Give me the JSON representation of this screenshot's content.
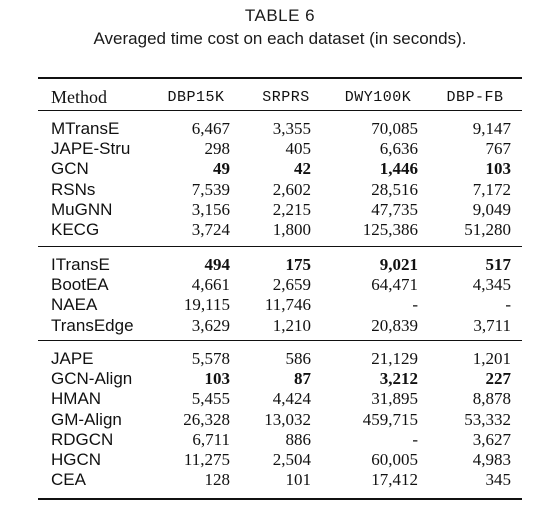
{
  "caption": {
    "label": "TABLE 6",
    "text": "Averaged time cost on each dataset (in seconds)."
  },
  "table": {
    "headers": [
      "Method",
      "DBP15K",
      "SRPRS",
      "DWY100K",
      "DBP-FB"
    ],
    "groups": [
      {
        "rows": [
          {
            "method": "MTransE",
            "values": [
              "6,467",
              "3,355",
              "70,085",
              "9,147"
            ],
            "bold": [
              false,
              false,
              false,
              false
            ]
          },
          {
            "method": "JAPE-Stru",
            "values": [
              "298",
              "405",
              "6,636",
              "767"
            ],
            "bold": [
              false,
              false,
              false,
              false
            ]
          },
          {
            "method": "GCN",
            "values": [
              "49",
              "42",
              "1,446",
              "103"
            ],
            "bold": [
              true,
              true,
              true,
              true
            ]
          },
          {
            "method": "RSNs",
            "values": [
              "7,539",
              "2,602",
              "28,516",
              "7,172"
            ],
            "bold": [
              false,
              false,
              false,
              false
            ]
          },
          {
            "method": "MuGNN",
            "values": [
              "3,156",
              "2,215",
              "47,735",
              "9,049"
            ],
            "bold": [
              false,
              false,
              false,
              false
            ]
          },
          {
            "method": "KECG",
            "values": [
              "3,724",
              "1,800",
              "125,386",
              "51,280"
            ],
            "bold": [
              false,
              false,
              false,
              false
            ]
          }
        ]
      },
      {
        "rows": [
          {
            "method": "ITransE",
            "values": [
              "494",
              "175",
              "9,021",
              "517"
            ],
            "bold": [
              true,
              true,
              true,
              true
            ]
          },
          {
            "method": "BootEA",
            "values": [
              "4,661",
              "2,659",
              "64,471",
              "4,345"
            ],
            "bold": [
              false,
              false,
              false,
              false
            ]
          },
          {
            "method": "NAEA",
            "values": [
              "19,115",
              "11,746",
              "-",
              "-"
            ],
            "bold": [
              false,
              false,
              false,
              false
            ]
          },
          {
            "method": "TransEdge",
            "values": [
              "3,629",
              "1,210",
              "20,839",
              "3,711"
            ],
            "bold": [
              false,
              false,
              false,
              false
            ]
          }
        ]
      },
      {
        "rows": [
          {
            "method": "JAPE",
            "values": [
              "5,578",
              "586",
              "21,129",
              "1,201"
            ],
            "bold": [
              false,
              false,
              false,
              false
            ]
          },
          {
            "method": "GCN-Align",
            "values": [
              "103",
              "87",
              "3,212",
              "227"
            ],
            "bold": [
              true,
              true,
              true,
              true
            ]
          },
          {
            "method": "HMAN",
            "values": [
              "5,455",
              "4,424",
              "31,895",
              "8,878"
            ],
            "bold": [
              false,
              false,
              false,
              false
            ]
          },
          {
            "method": "GM-Align",
            "values": [
              "26,328",
              "13,032",
              "459,715",
              "53,332"
            ],
            "bold": [
              false,
              false,
              false,
              false
            ]
          },
          {
            "method": "RDGCN",
            "values": [
              "6,711",
              "886",
              "-",
              "3,627"
            ],
            "bold": [
              false,
              false,
              false,
              false
            ]
          },
          {
            "method": "HGCN",
            "values": [
              "11,275",
              "2,504",
              "60,005",
              "4,983"
            ],
            "bold": [
              false,
              false,
              false,
              false
            ]
          },
          {
            "method": "CEA",
            "values": [
              "128",
              "101",
              "17,412",
              "345"
            ],
            "bold": [
              false,
              false,
              false,
              false
            ]
          }
        ]
      }
    ]
  }
}
